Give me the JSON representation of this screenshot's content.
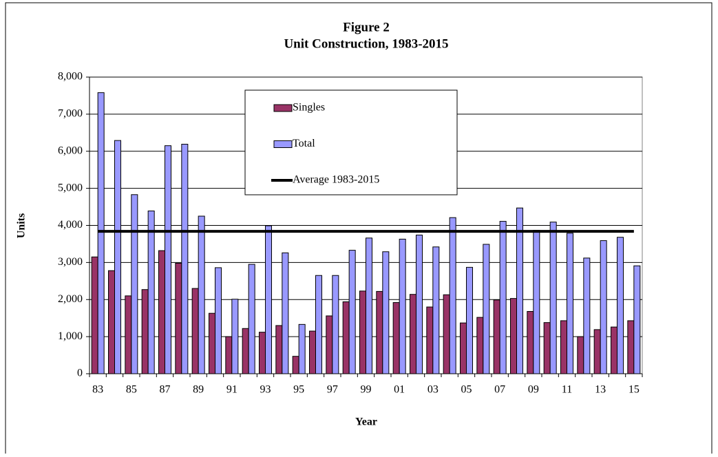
{
  "chart_data": {
    "type": "bar",
    "title": "Figure 2",
    "subtitle": "Unit Construction, 1983-2015",
    "x_label": "Year",
    "y_label": "Units",
    "categories": [
      "83",
      null,
      "85",
      null,
      "87",
      null,
      "89",
      null,
      "91",
      null,
      "93",
      null,
      "95",
      null,
      "97",
      null,
      "99",
      null,
      "01",
      null,
      "03",
      null,
      "05",
      null,
      "07",
      null,
      "09",
      null,
      "11",
      null,
      "13",
      null,
      "15"
    ],
    "series": [
      {
        "name": "Singles",
        "color": "#993366",
        "values": [
          3150,
          2780,
          2100,
          2270,
          3320,
          2980,
          2300,
          1630,
          1000,
          1220,
          1120,
          1300,
          470,
          1150,
          1560,
          1940,
          2230,
          2220,
          1920,
          2140,
          1800,
          2130,
          1370,
          1520,
          1990,
          2030,
          1680,
          1380,
          1430,
          1000,
          1190,
          1260,
          1430
        ]
      },
      {
        "name": "Total",
        "color": "#9999ff",
        "values": [
          7580,
          6290,
          4830,
          4390,
          6150,
          6190,
          4250,
          2860,
          2010,
          2950,
          3990,
          3260,
          1330,
          2650,
          2650,
          3330,
          3660,
          3290,
          3630,
          3740,
          3420,
          4210,
          2870,
          3490,
          4110,
          4470,
          3870,
          4090,
          3790,
          3120,
          3590,
          3680,
          2910
        ]
      },
      {
        "name": "Average 1983-2015",
        "color": "#000000",
        "type": "line",
        "values": [
          3840,
          3840,
          3840,
          3840,
          3840,
          3840,
          3840,
          3840,
          3840,
          3840,
          3840,
          3840,
          3840,
          3840,
          3840,
          3840,
          3840,
          3840,
          3840,
          3840,
          3840,
          3840,
          3840,
          3840,
          3840,
          3840,
          3840,
          3840,
          3840,
          3840,
          3840,
          3840,
          3840
        ]
      }
    ],
    "ylim": [
      0,
      8000
    ],
    "yticks": [
      0,
      {
        "value": 1000,
        "label": "1,000"
      },
      {
        "value": 2000,
        "label": "2,000"
      },
      {
        "value": 3000,
        "label": "3,000"
      },
      {
        "value": 4000,
        "label": "4,000"
      },
      {
        "value": 5000,
        "label": "5,000"
      },
      {
        "value": 6000,
        "label": "6,000"
      },
      {
        "value": 7000,
        "label": "7,000"
      },
      {
        "value": 8000,
        "label": "8,000"
      }
    ],
    "grid": true
  }
}
